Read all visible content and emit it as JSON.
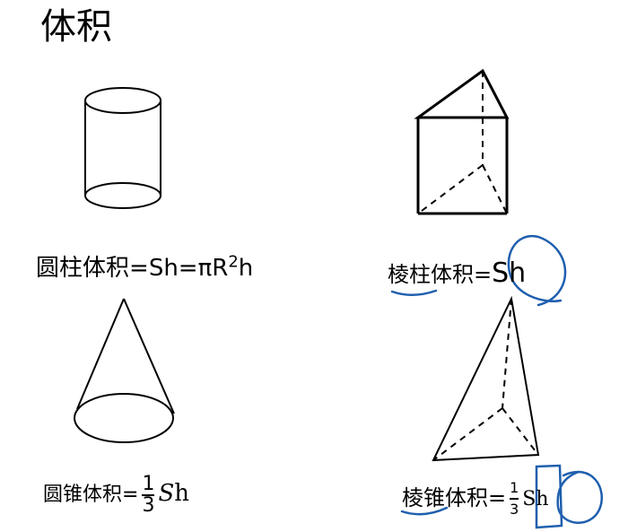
{
  "title": "体积",
  "cylinder": {
    "label": "圆柱体积",
    "eq": "=",
    "rhs1": "Sh",
    "rhs2": "=πR",
    "exp": "2",
    "rhs3": "h"
  },
  "prism": {
    "label": "棱柱体积",
    "eq": "=",
    "rhs": "Sh"
  },
  "cone": {
    "label": "圆锥体积",
    "eq": "=",
    "num": "1",
    "den": "3",
    "s": "S",
    "h": "h"
  },
  "pyramid": {
    "label": "棱锥体积",
    "eq": "=",
    "num": "1",
    "den": "3",
    "rhs": "Sh"
  },
  "annotation_color": "#1f5fae"
}
